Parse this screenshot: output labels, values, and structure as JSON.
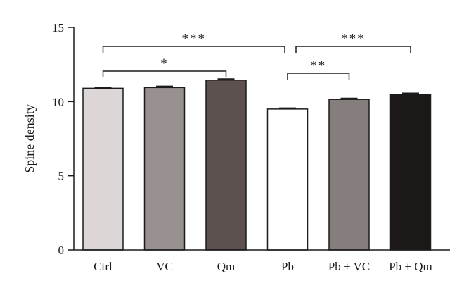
{
  "chart_data": {
    "type": "bar",
    "title": "",
    "xlabel": "",
    "ylabel": "Spine density",
    "ylim": [
      0,
      15
    ],
    "yticks": [
      "0",
      "5",
      "10",
      "15"
    ],
    "grid": false,
    "legend": "none",
    "categories": [
      "Ctrl",
      "VC",
      "Qm",
      "Pb",
      "Pb + VC",
      "Pb + Qm"
    ],
    "values": [
      10.9,
      10.95,
      11.45,
      9.5,
      10.15,
      10.5
    ],
    "errors": [
      0.06,
      0.08,
      0.07,
      0.06,
      0.07,
      0.06
    ],
    "colors": [
      "#dcd6d6",
      "#999190",
      "#5d5150",
      "#ffffff",
      "#857e7d",
      "#1c1818"
    ],
    "significance": [
      {
        "from": "Ctrl",
        "to": "Qm",
        "label": "*"
      },
      {
        "from": "Ctrl",
        "to": "Pb",
        "label": "***"
      },
      {
        "from": "Pb",
        "to": "Pb + VC",
        "label": "**"
      },
      {
        "from": "Pb",
        "to": "Pb + Qm",
        "label": "***"
      }
    ]
  }
}
